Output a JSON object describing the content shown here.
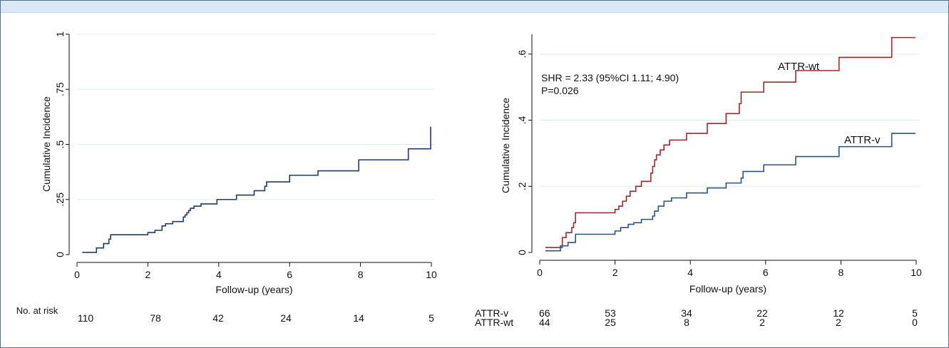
{
  "colors": {
    "frame": "#5a6f8f",
    "header": "#dbe8f6",
    "grid": "#dcebee",
    "overall": "#1f3d6b",
    "attr_v": "#2c5382",
    "attr_wt": "#9c2a2a"
  },
  "chart_data": [
    {
      "type": "line",
      "title": "",
      "xlabel": "Follow-up (years)",
      "ylabel": "Cumulative Incidence",
      "xlim": [
        0,
        10
      ],
      "ylim": [
        0,
        1
      ],
      "xticks": [
        "0",
        "2",
        "4",
        "6",
        "8",
        "10"
      ],
      "yticks": [
        "0",
        ".25",
        ".5",
        ".75",
        "1"
      ],
      "grid": true,
      "series": [
        {
          "name": "",
          "color": "#1f3d6b",
          "step": [
            [
              0.15,
              0.01
            ],
            [
              0.55,
              0.03
            ],
            [
              0.75,
              0.05
            ],
            [
              0.9,
              0.07
            ],
            [
              0.95,
              0.09
            ],
            [
              2.0,
              0.1
            ],
            [
              2.2,
              0.11
            ],
            [
              2.4,
              0.13
            ],
            [
              2.5,
              0.14
            ],
            [
              2.7,
              0.15
            ],
            [
              3.0,
              0.17
            ],
            [
              3.05,
              0.18
            ],
            [
              3.1,
              0.19
            ],
            [
              3.15,
              0.2
            ],
            [
              3.2,
              0.21
            ],
            [
              3.3,
              0.22
            ],
            [
              3.5,
              0.23
            ],
            [
              3.95,
              0.25
            ],
            [
              4.5,
              0.27
            ],
            [
              5.0,
              0.29
            ],
            [
              5.3,
              0.31
            ],
            [
              5.35,
              0.33
            ],
            [
              6.0,
              0.36
            ],
            [
              6.8,
              0.38
            ],
            [
              7.95,
              0.43
            ],
            [
              9.35,
              0.48
            ],
            [
              9.98,
              0.58
            ]
          ],
          "end": 9.98
        }
      ],
      "risk_table": {
        "title": "No. at risk",
        "rows": [
          {
            "label": "",
            "values": [
              "110",
              "78",
              "42",
              "24",
              "14",
              "5"
            ]
          }
        ]
      }
    },
    {
      "type": "line",
      "title": "",
      "xlabel": "Follow-up (years)",
      "ylabel": "Cumulative Incidence",
      "xlim": [
        0,
        10
      ],
      "ylim": [
        0,
        0.66
      ],
      "xticks": [
        "0",
        "2",
        "4",
        "6",
        "8",
        "10"
      ],
      "yticks": [
        "0",
        ".2",
        ".4",
        ".6"
      ],
      "grid": true,
      "annotation": {
        "line1": "SHR = 2.33 (95%CI 1.11; 4.90)",
        "line2": "P=0.026"
      },
      "series": [
        {
          "name": "ATTR-wt",
          "color": "#9c2a2a",
          "step": [
            [
              0.15,
              0.015
            ],
            [
              0.6,
              0.045
            ],
            [
              0.7,
              0.06
            ],
            [
              0.85,
              0.075
            ],
            [
              0.9,
              0.09
            ],
            [
              0.95,
              0.12
            ],
            [
              2.0,
              0.13
            ],
            [
              2.1,
              0.14
            ],
            [
              2.2,
              0.155
            ],
            [
              2.3,
              0.17
            ],
            [
              2.4,
              0.185
            ],
            [
              2.55,
              0.2
            ],
            [
              2.7,
              0.215
            ],
            [
              2.95,
              0.24
            ],
            [
              3.0,
              0.26
            ],
            [
              3.05,
              0.28
            ],
            [
              3.1,
              0.295
            ],
            [
              3.2,
              0.31
            ],
            [
              3.3,
              0.325
            ],
            [
              3.45,
              0.34
            ],
            [
              3.9,
              0.36
            ],
            [
              4.45,
              0.39
            ],
            [
              4.95,
              0.42
            ],
            [
              5.3,
              0.45
            ],
            [
              5.35,
              0.485
            ],
            [
              5.95,
              0.515
            ],
            [
              6.8,
              0.55
            ],
            [
              7.95,
              0.59
            ],
            [
              9.35,
              0.65
            ]
          ],
          "end": 9.98
        },
        {
          "name": "ATTR-v",
          "color": "#2c5382",
          "step": [
            [
              0.15,
              0.005
            ],
            [
              0.55,
              0.02
            ],
            [
              0.75,
              0.03
            ],
            [
              0.95,
              0.055
            ],
            [
              2.0,
              0.065
            ],
            [
              2.15,
              0.075
            ],
            [
              2.35,
              0.085
            ],
            [
              2.5,
              0.09
            ],
            [
              2.7,
              0.1
            ],
            [
              3.0,
              0.11
            ],
            [
              3.05,
              0.125
            ],
            [
              3.15,
              0.14
            ],
            [
              3.3,
              0.155
            ],
            [
              3.5,
              0.165
            ],
            [
              3.9,
              0.18
            ],
            [
              4.45,
              0.195
            ],
            [
              4.95,
              0.21
            ],
            [
              5.35,
              0.225
            ],
            [
              5.4,
              0.245
            ],
            [
              5.95,
              0.265
            ],
            [
              6.8,
              0.29
            ],
            [
              7.95,
              0.32
            ],
            [
              9.35,
              0.36
            ]
          ],
          "end": 9.98
        }
      ],
      "risk_table": {
        "title": "",
        "rows": [
          {
            "label": "ATTR-v",
            "values": [
              "66",
              "53",
              "34",
              "22",
              "12",
              "5"
            ]
          },
          {
            "label": "ATTR-wt",
            "values": [
              "44",
              "25",
              "8",
              "2",
              "2",
              "0"
            ]
          }
        ]
      }
    }
  ]
}
